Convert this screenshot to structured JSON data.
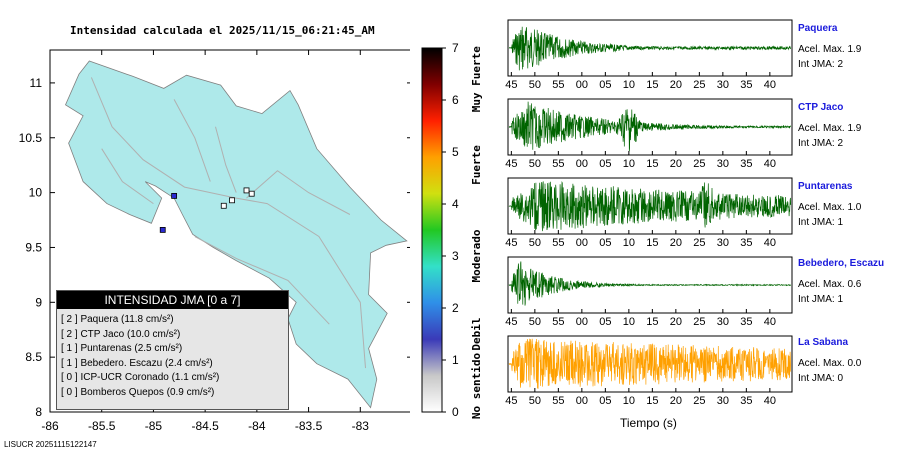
{
  "map": {
    "title": "Intensidad calculada el 2025/11/15_06:21:45_AM",
    "x_ticks": [
      "-86",
      "-85.5",
      "-85",
      "-84.5",
      "-84",
      "-83.5",
      "-83"
    ],
    "y_ticks": [
      "11",
      "10.5",
      "10",
      "9.5",
      "9",
      "8.5",
      "8"
    ],
    "xlim": [
      -86,
      -82.5
    ],
    "ylim": [
      8,
      11.3
    ],
    "land_color": "#aee9ea",
    "road_color": "#b0b0b0",
    "station_markers": [
      {
        "lon": -84.8,
        "lat": 9.97,
        "intensity": 2
      },
      {
        "lon": -84.91,
        "lat": 9.66,
        "intensity": 2
      },
      {
        "lon": -84.1,
        "lat": 10.02,
        "intensity": 1
      },
      {
        "lon": -84.05,
        "lat": 9.99,
        "intensity": 1
      },
      {
        "lon": -84.24,
        "lat": 9.93,
        "intensity": 0
      },
      {
        "lon": -84.32,
        "lat": 9.88,
        "intensity": 0
      }
    ]
  },
  "legend": {
    "title": "INTENSIDAD JMA [0 a 7]",
    "items": [
      {
        "text": "[ 2 ]  Paquera (11.8 cm/s²)"
      },
      {
        "text": "[ 2 ]  CTP Jaco (10.0 cm/s²)"
      },
      {
        "text": "[ 1 ]  Puntarenas (2.5 cm/s²)"
      },
      {
        "text": "[ 1 ]  Bebedero. Escazu (2.4 cm/s²)"
      },
      {
        "text": "[ 0 ]  ICP-UCR Coronado (1.1 cm/s²)"
      },
      {
        "text": "[ 0 ]  Bomberos Quepos (0.9 cm/s²)"
      }
    ]
  },
  "scale": {
    "ticks": [
      "0",
      "1",
      "2",
      "3",
      "4",
      "5",
      "6",
      "7"
    ],
    "labels": [
      "No sentido",
      "Debil",
      "Moderado",
      "Fuerte",
      "Muy Fuerte"
    ],
    "colors": [
      "#ffffff",
      "#c8c8c8",
      "#3a3ab8",
      "#2f8fe8",
      "#33e0c8",
      "#22c822",
      "#d0e010",
      "#ffa000",
      "#ff2000",
      "#800000",
      "#000000"
    ]
  },
  "footer": {
    "id": "LISUCR 20251115122147"
  },
  "chart_data": {
    "type": "line",
    "x_tick_labels": [
      "45",
      "50",
      "55",
      "00",
      "05",
      "10",
      "15",
      "20",
      "25",
      "30",
      "35",
      "40"
    ],
    "xlabel": "Tiempo (s)",
    "series": [
      {
        "name": "Paquera",
        "acel_label": "Acel. Max. 1.9",
        "int_label": "Int JMA: 2",
        "color": "#006400",
        "onset_s": 0.6,
        "peak_s": 2.5,
        "decay_s": 10,
        "burst_s": null,
        "tail_amp": 0.06
      },
      {
        "name": "CTP Jaco",
        "acel_label": "Acel. Max. 1.9",
        "int_label": "Int JMA: 2",
        "color": "#006400",
        "onset_s": 0.6,
        "peak_s": 4,
        "decay_s": 14,
        "burst_s": 25.5,
        "tail_amp": 0.04
      },
      {
        "name": "Puntarenas",
        "acel_label": "Acel. Max. 1.0",
        "int_label": "Int JMA: 1",
        "color": "#006400",
        "onset_s": 0.6,
        "peak_s": 6,
        "decay_s": 60,
        "burst_s": 42,
        "tail_amp": 0.25
      },
      {
        "name": "Bebedero, Escazu",
        "acel_label": "Acel. Max. 0.6",
        "int_label": "Int JMA: 1",
        "color": "#006400",
        "onset_s": 0.6,
        "peak_s": 2,
        "decay_s": 7,
        "burst_s": null,
        "tail_amp": 0.02
      },
      {
        "name": "La Sabana",
        "acel_label": "Acel. Max. 0.0",
        "int_label": "Int JMA: 0",
        "color": "#ffa000",
        "onset_s": 0.6,
        "peak_s": 2,
        "decay_s": 120,
        "burst_s": null,
        "tail_amp": 0.3
      }
    ]
  }
}
